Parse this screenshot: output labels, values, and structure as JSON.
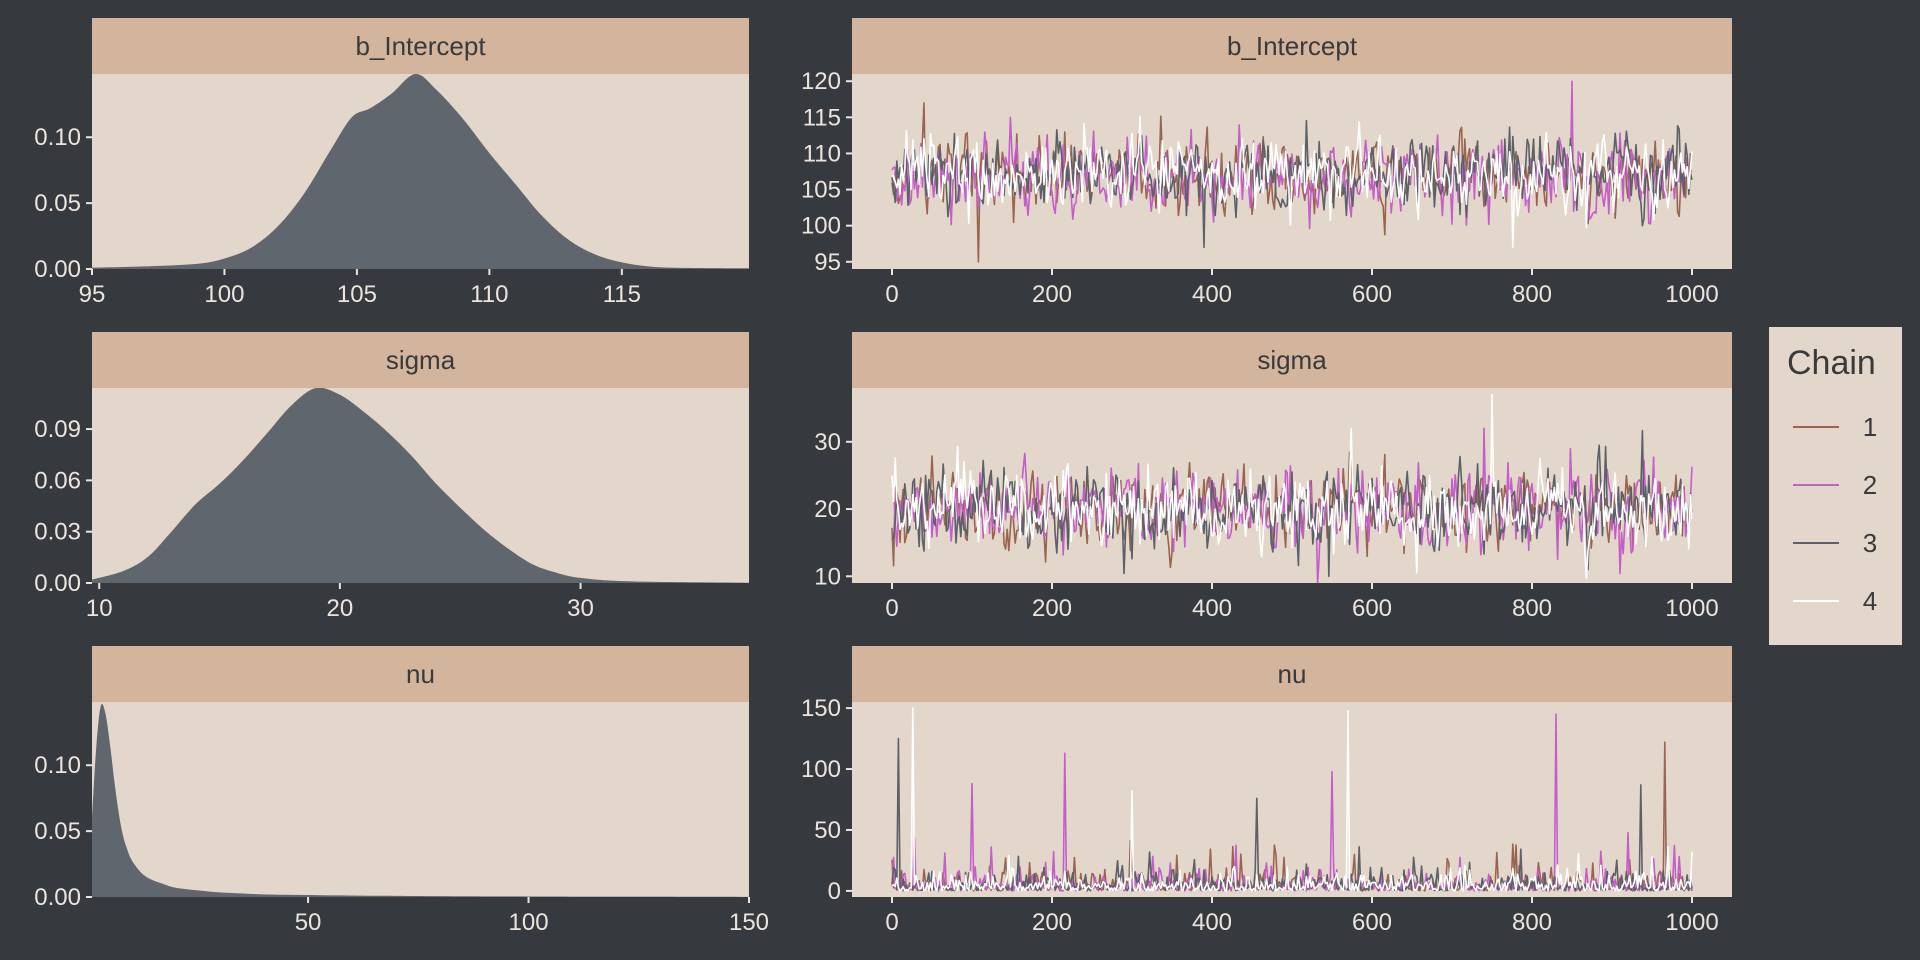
{
  "colors": {
    "background": "#36393e",
    "panel": "#e3d7cb",
    "strip": "#d3b49d",
    "density_fill": "#60666e",
    "tick_text": "#ece4dc",
    "chains": [
      "#9a6452",
      "#c45ec8",
      "#5c6168",
      "#ffffff"
    ]
  },
  "legend": {
    "title": "Chain",
    "labels": [
      "1",
      "2",
      "3",
      "4"
    ]
  },
  "chart_data": [
    {
      "type": "area",
      "facet": "b_Intercept",
      "title": "b_Intercept",
      "xlim": [
        95,
        119.8
      ],
      "ylim": [
        0,
        0.148
      ],
      "xticks": [
        95,
        100,
        105,
        110,
        115
      ],
      "yticks": [
        0.0,
        0.05,
        0.1
      ],
      "ytick_labels": [
        "0.00",
        "0.05",
        "0.10"
      ],
      "x": [
        95,
        97,
        99,
        100,
        101,
        102,
        103,
        104,
        104.8,
        105.5,
        106.3,
        107.2,
        108,
        109,
        110,
        111,
        112,
        113,
        114,
        115,
        116,
        117,
        119.8
      ],
      "y": [
        0.001,
        0.002,
        0.004,
        0.008,
        0.016,
        0.032,
        0.057,
        0.09,
        0.115,
        0.122,
        0.133,
        0.148,
        0.136,
        0.114,
        0.088,
        0.064,
        0.04,
        0.022,
        0.011,
        0.005,
        0.002,
        0.001,
        0.0005
      ]
    },
    {
      "type": "area",
      "facet": "sigma",
      "title": "sigma",
      "xlim": [
        9.7,
        37
      ],
      "ylim": [
        0,
        0.114
      ],
      "xticks": [
        10,
        20,
        30
      ],
      "yticks": [
        0.0,
        0.03,
        0.06,
        0.09
      ],
      "ytick_labels": [
        "0.00",
        "0.03",
        "0.06",
        "0.09"
      ],
      "x": [
        9.7,
        11,
        12,
        13,
        14,
        15,
        16,
        17,
        18,
        19,
        20,
        21,
        22,
        23,
        24,
        25,
        26,
        27,
        28,
        29,
        30,
        32,
        37
      ],
      "y": [
        0.002,
        0.007,
        0.015,
        0.03,
        0.046,
        0.058,
        0.072,
        0.088,
        0.104,
        0.114,
        0.11,
        0.1,
        0.088,
        0.074,
        0.058,
        0.044,
        0.031,
        0.02,
        0.011,
        0.006,
        0.003,
        0.001,
        0.0002
      ]
    },
    {
      "type": "area",
      "facet": "nu",
      "title": "nu",
      "xlim": [
        1,
        150
      ],
      "ylim": [
        0,
        0.148
      ],
      "xticks": [
        50,
        100,
        150
      ],
      "yticks": [
        0.0,
        0.05,
        0.1
      ],
      "ytick_labels": [
        "0.00",
        "0.05",
        "0.10"
      ],
      "x": [
        1,
        2,
        3,
        4,
        5,
        6,
        7,
        8,
        9,
        10,
        12,
        14,
        17,
        20,
        25,
        30,
        40,
        50,
        70,
        100,
        150
      ],
      "y": [
        0.06,
        0.115,
        0.145,
        0.14,
        0.118,
        0.09,
        0.065,
        0.047,
        0.036,
        0.028,
        0.019,
        0.014,
        0.01,
        0.007,
        0.005,
        0.0035,
        0.002,
        0.0015,
        0.0008,
        0.0004,
        0.0001
      ]
    },
    {
      "type": "line",
      "facet": "b_Intercept",
      "title": "b_Intercept",
      "series_labels": [
        "1",
        "2",
        "3",
        "4"
      ],
      "xlim": [
        -50,
        1050
      ],
      "ylim": [
        94,
        121
      ],
      "xticks": [
        0,
        200,
        400,
        600,
        800,
        1000
      ],
      "yticks": [
        95,
        100,
        105,
        110,
        115,
        120
      ],
      "ytick_labels": [
        "95",
        "100",
        "105",
        "110",
        "115",
        "120"
      ],
      "trace": {
        "n": 1000,
        "center": 107,
        "sd": 3.2,
        "spikes": [
          [
            1,
            40,
            117
          ],
          [
            1,
            108,
            95
          ],
          [
            2,
            850,
            120
          ],
          [
            3,
            390,
            97
          ],
          [
            4,
            775,
            97
          ]
        ]
      }
    },
    {
      "type": "line",
      "facet": "sigma",
      "title": "sigma",
      "series_labels": [
        "1",
        "2",
        "3",
        "4"
      ],
      "xlim": [
        -50,
        1050
      ],
      "ylim": [
        9,
        38
      ],
      "xticks": [
        0,
        200,
        400,
        600,
        800,
        1000
      ],
      "yticks": [
        10,
        20,
        30
      ],
      "ytick_labels": [
        "10",
        "20",
        "30"
      ],
      "trace": {
        "n": 1000,
        "center": 20,
        "sd": 3.8,
        "spikes": [
          [
            4,
            750,
            37
          ],
          [
            2,
            740,
            32
          ],
          [
            3,
            545,
            10
          ]
        ]
      }
    },
    {
      "type": "line",
      "facet": "nu",
      "title": "nu",
      "series_labels": [
        "1",
        "2",
        "3",
        "4"
      ],
      "xlim": [
        -50,
        1050
      ],
      "ylim": [
        -5,
        155
      ],
      "xticks": [
        0,
        200,
        400,
        600,
        800,
        1000
      ],
      "yticks": [
        0,
        50,
        100,
        150
      ],
      "ytick_labels": [
        "0",
        "50",
        "100",
        "150"
      ],
      "trace": {
        "n": 1000,
        "center": 5,
        "skew": true,
        "spikes": [
          [
            3,
            8,
            125
          ],
          [
            4,
            25,
            150
          ],
          [
            2,
            100,
            88
          ],
          [
            2,
            215,
            113
          ],
          [
            4,
            570,
            148
          ],
          [
            2,
            550,
            98
          ],
          [
            2,
            830,
            145
          ],
          [
            1,
            965,
            122
          ],
          [
            3,
            935,
            87
          ],
          [
            3,
            455,
            76
          ],
          [
            4,
            300,
            82
          ]
        ]
      }
    }
  ]
}
